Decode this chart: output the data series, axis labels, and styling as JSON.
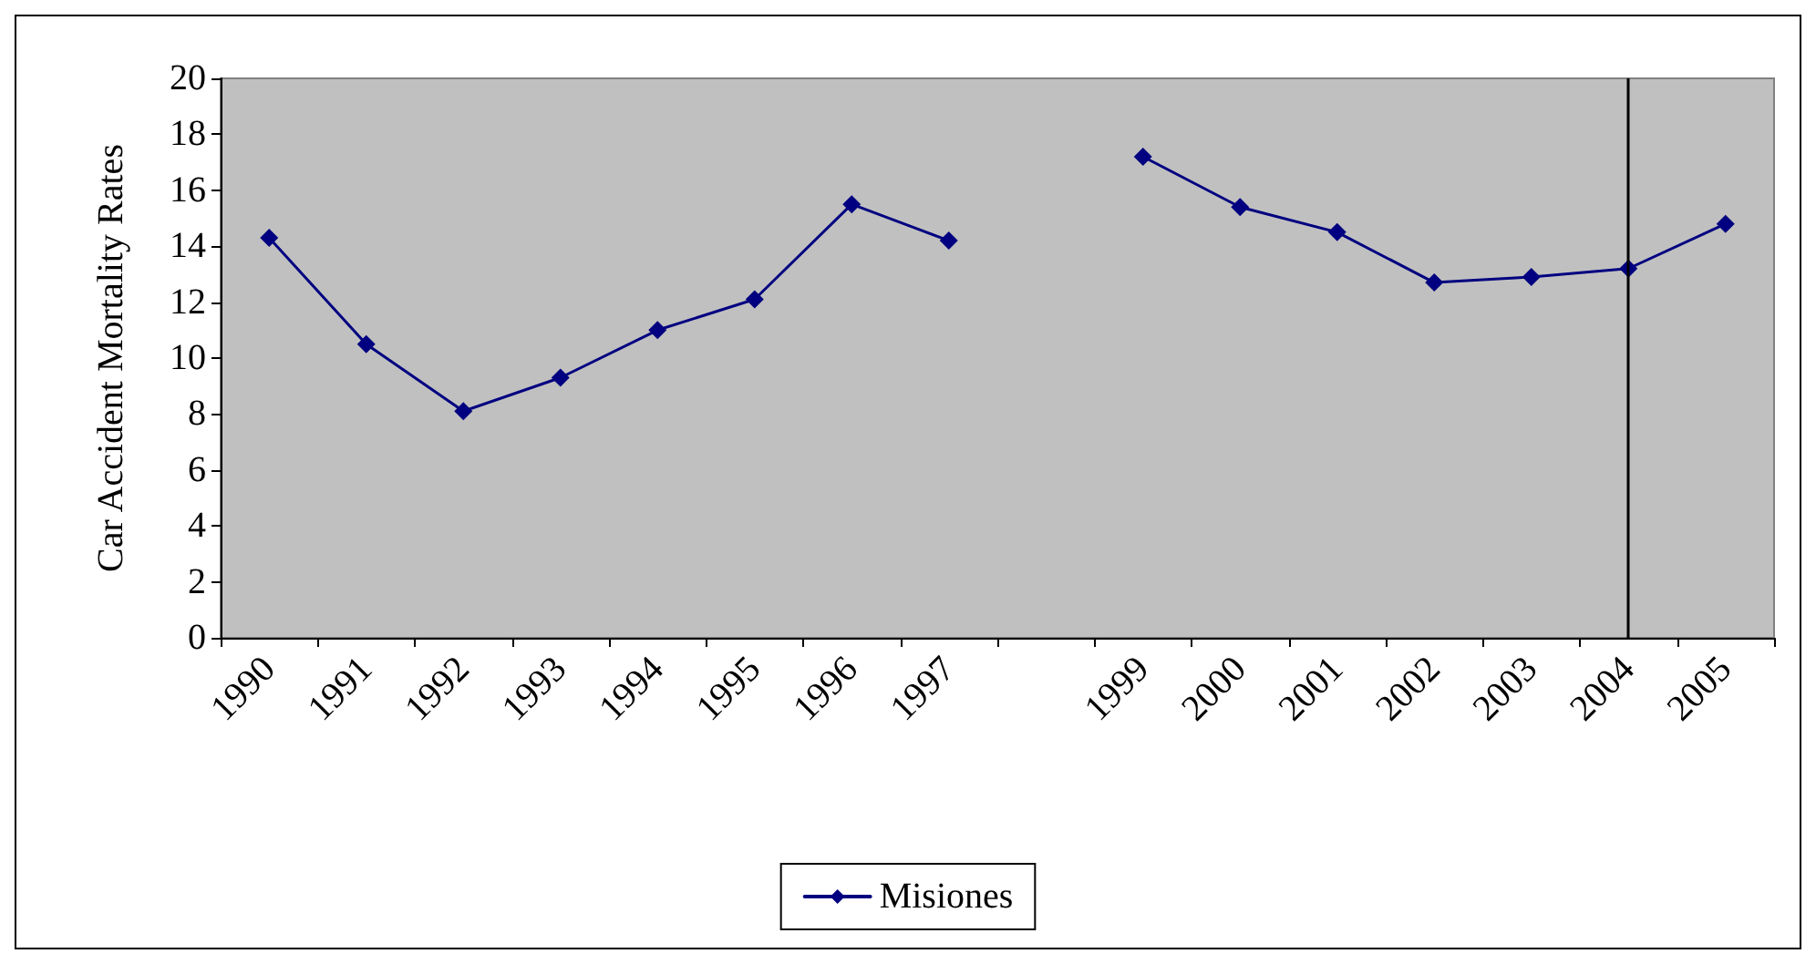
{
  "chart_data": {
    "type": "line",
    "ylabel": "Car Accident Mortality Rates",
    "categories": [
      "1990",
      "1991",
      "1992",
      "1993",
      "1994",
      "1995",
      "1996",
      "1997",
      null,
      "1999",
      "2000",
      "2001",
      "2002",
      "2003",
      "2004",
      "2005"
    ],
    "series": [
      {
        "name": "Misiones",
        "color": "#000080",
        "values": [
          14.3,
          10.5,
          8.1,
          9.3,
          11.0,
          12.1,
          15.5,
          14.2,
          null,
          17.2,
          15.4,
          14.5,
          12.7,
          12.9,
          13.2,
          14.8
        ]
      }
    ],
    "ylim": [
      0,
      20
    ],
    "yticks": [
      0,
      2,
      4,
      6,
      8,
      10,
      12,
      14,
      16,
      18,
      20
    ],
    "grid": false,
    "legend": "bottom",
    "marker": "diamond",
    "line_style": "solid",
    "ref_lines": [
      {
        "axis": "x",
        "value": "2004",
        "color": "#000000"
      }
    ]
  }
}
